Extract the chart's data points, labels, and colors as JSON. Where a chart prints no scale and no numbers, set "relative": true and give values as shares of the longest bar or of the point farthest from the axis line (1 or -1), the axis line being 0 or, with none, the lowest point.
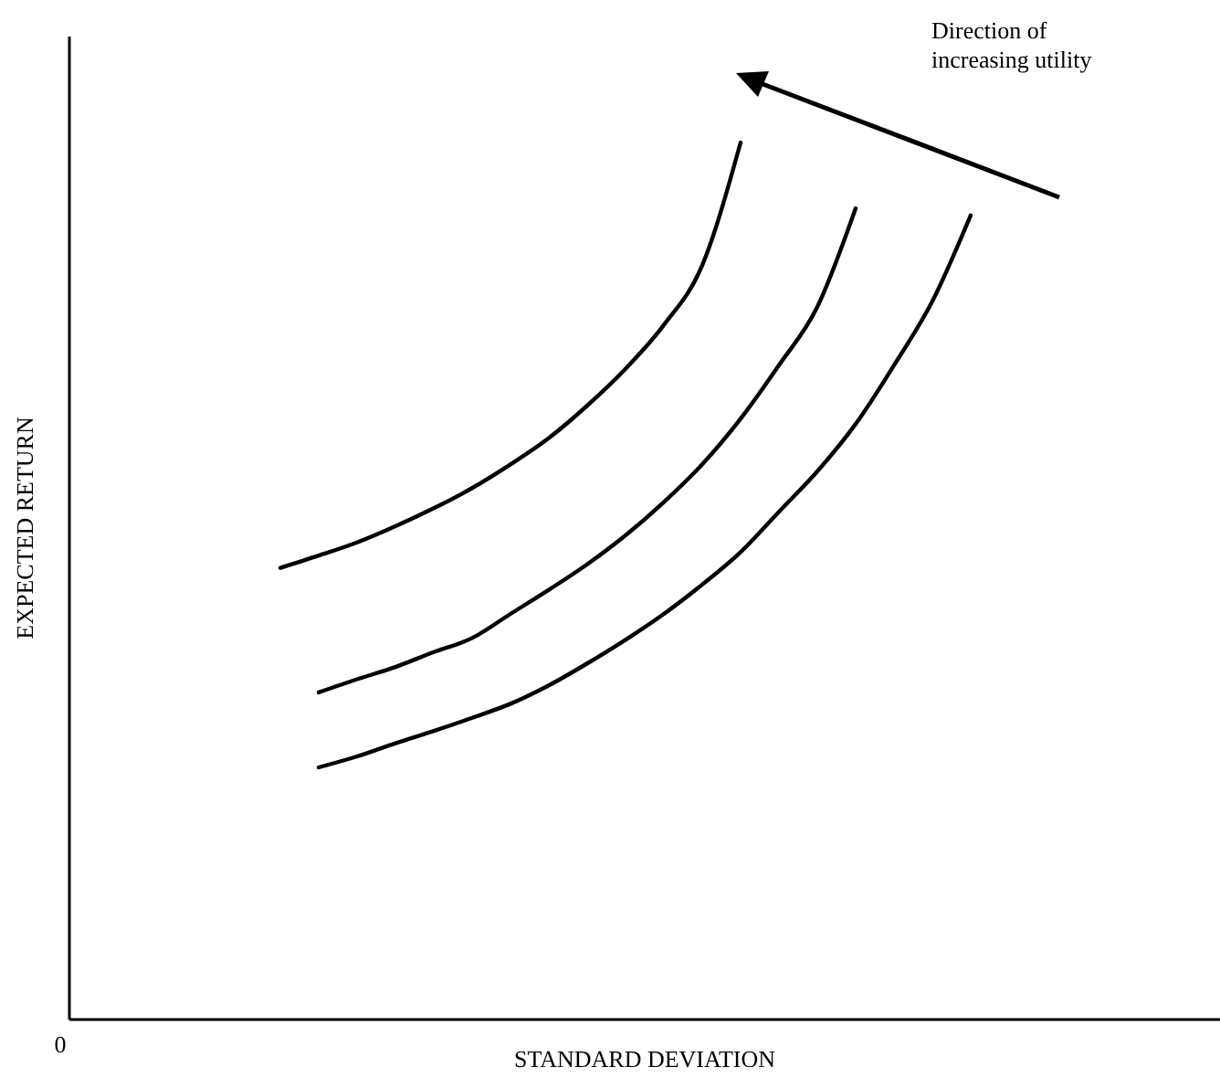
{
  "chart_data": {
    "type": "line",
    "relative": true,
    "xlabel": "STANDARD DEVIATION",
    "ylabel": "EXPECTED RETURN",
    "categories": [
      null,
      null,
      null,
      null,
      null,
      null,
      null,
      null,
      null,
      null,
      null,
      null,
      null,
      null,
      null,
      null,
      null,
      null,
      null,
      null,
      null,
      null,
      null,
      null,
      null,
      null,
      null,
      null,
      null,
      null
    ],
    "series": [
      {
        "color": "#000000",
        "values": [
          null,
          null,
          null,
          null,
          null,
          0.515,
          0.529,
          0.544,
          0.5625,
          0.583,
          0.606,
          0.633,
          0.663,
          0.7,
          0.742,
          0.792,
          0.86,
          1,
          null,
          null,
          null,
          null,
          null,
          null,
          null,
          null,
          null,
          null,
          null,
          null
        ]
      },
      {
        "color": "#000000",
        "values": [
          null,
          null,
          null,
          null,
          null,
          null,
          0.373,
          0.388,
          0.402,
          0.419,
          0.435,
          0.4625,
          0.49,
          0.519,
          0.552,
          0.59,
          0.633,
          0.685,
          0.746,
          0.8125,
          0.925,
          null,
          null,
          null,
          null,
          null,
          null,
          null,
          null,
          null
        ]
      },
      {
        "color": "#000000",
        "values": [
          null,
          null,
          null,
          null,
          null,
          null,
          0.2875,
          0.3,
          0.315,
          0.329,
          0.344,
          0.36,
          0.381,
          0.406,
          0.433,
          0.4625,
          0.496,
          0.533,
          0.579,
          0.625,
          0.679,
          0.746,
          0.819,
          0.917,
          null,
          null,
          null,
          null,
          null,
          null
        ]
      }
    ],
    "annotations": [
      "0",
      "Direction of increasing utility"
    ],
    "grid": false,
    "marker": "none",
    "line_style": "solid"
  }
}
